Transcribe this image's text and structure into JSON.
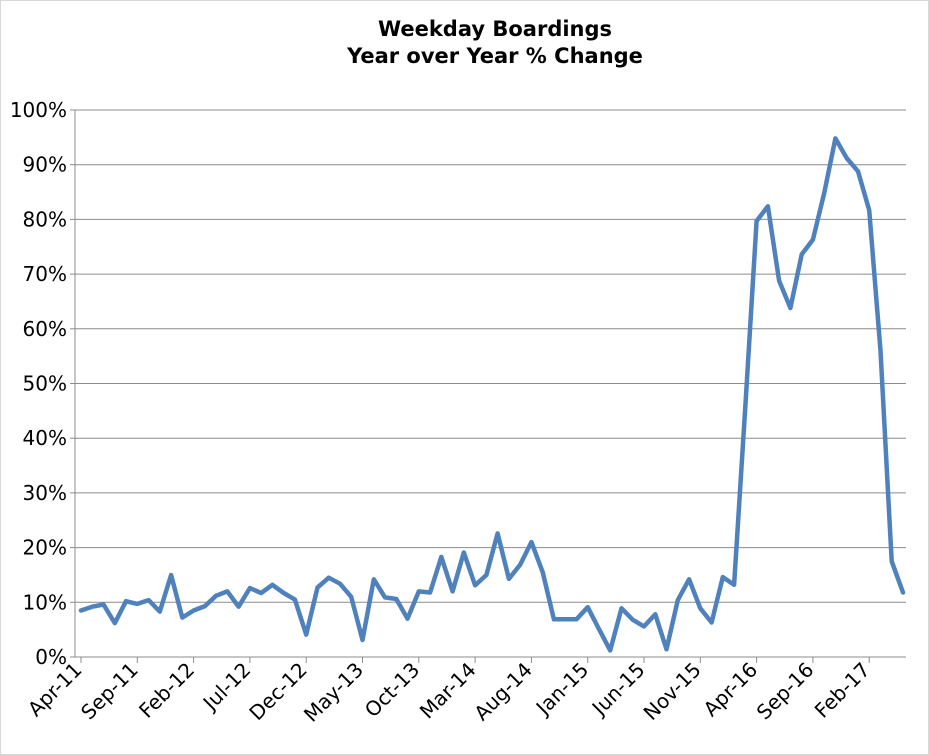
{
  "chart_data": {
    "type": "line",
    "title": "Weekday Boardings",
    "subtitle": "Year over Year % Change",
    "xlabel": "",
    "ylabel": "",
    "ylim": [
      0,
      100
    ],
    "y_ticks": [
      "0%",
      "10%",
      "20%",
      "30%",
      "40%",
      "50%",
      "60%",
      "70%",
      "80%",
      "90%",
      "100%"
    ],
    "x_tick_labels": [
      "Apr-11",
      "Sep-11",
      "Feb-12",
      "Jul-12",
      "Dec-12",
      "May-13",
      "Oct-13",
      "Mar-14",
      "Aug-14",
      "Jan-15",
      "Jun-15",
      "Nov-15",
      "Apr-16",
      "Sep-16",
      "Feb-17"
    ],
    "grid": true,
    "legend": "none",
    "series": [
      {
        "color": "#4f81bd",
        "values": [
          8.5,
          9.2,
          9.6,
          6.2,
          10.2,
          9.7,
          10.4,
          8.3,
          15.0,
          7.2,
          8.5,
          9.3,
          11.2,
          12.0,
          9.2,
          12.6,
          11.7,
          13.2,
          11.7,
          10.5,
          4.1,
          12.7,
          14.5,
          13.4,
          11.0,
          3.1,
          14.2,
          10.9,
          10.6,
          7.0,
          12.0,
          11.8,
          18.3,
          12.0,
          19.1,
          13.1,
          15.0,
          22.6,
          14.3,
          16.9,
          21.0,
          15.5,
          6.9,
          6.9,
          6.9,
          9.1,
          5.1,
          1.2,
          8.9,
          6.8,
          5.6,
          7.8,
          1.4,
          10.4,
          14.2,
          8.9,
          6.3,
          14.6,
          13.2,
          46.0,
          79.7,
          82.4,
          68.8,
          63.8,
          73.6,
          76.3,
          84.8,
          94.8,
          91.2,
          88.8,
          81.7,
          56.0,
          17.5,
          11.8
        ]
      }
    ]
  }
}
